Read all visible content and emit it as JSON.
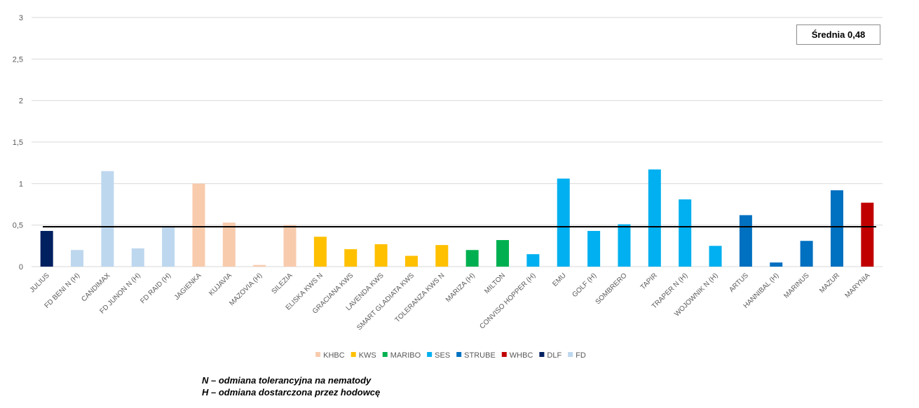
{
  "average_label": "Średnia 0,48",
  "notes": [
    "N – odmiana tolerancyjna na nematody",
    "H – odmiana dostarczona przez hodowcę"
  ],
  "colors": {
    "KHBC": "#f8cbad",
    "KWS": "#ffc000",
    "MARIBO": "#00b050",
    "SES": "#00b0f0",
    "STRUBE": "#0070c0",
    "WHBC": "#c00000",
    "DLF": "#002060",
    "FD": "#bdd7ee"
  },
  "chart_data": {
    "type": "bar",
    "ylim": [
      0,
      3
    ],
    "yticks": [
      "0",
      "0,5",
      "1",
      "1,5",
      "2",
      "2,5",
      "3"
    ],
    "ytick_values": [
      0,
      0.5,
      1,
      1.5,
      2,
      2.5,
      3
    ],
    "average": 0.48,
    "grid": true,
    "legend_position": "bottom",
    "legend": [
      "KHBC",
      "KWS",
      "MARIBO",
      "SES",
      "STRUBE",
      "WHBC",
      "DLF",
      "FD"
    ],
    "categories": [
      "JULIUS",
      "FD BENI N (H)",
      "CANDIMAX",
      "FD JUNON N (H)",
      "FD RAID (H)",
      "JAGIENKA",
      "KUJAVIA",
      "MAZOVIA (H)",
      "SILEZIA",
      "ELISKA KWS N",
      "GRACIANA KWS",
      "LAVENDA KWS",
      "SMART GLADIATA KWS",
      "TOLERANZA KWS N",
      "MARIZA (H)",
      "MILTON",
      "CONVISO HOPPER (H)",
      "EMU",
      "GOLF (H)",
      "SOMBRERO",
      "TAPIR",
      "TRAPER N (H)",
      "WOJOWNIK N (H)",
      "ARTUS",
      "HANNIBAL (H)",
      "MARINUS",
      "MAZUR",
      "MARYNIA"
    ],
    "values": [
      0.43,
      0.2,
      1.15,
      0.22,
      0.48,
      1.0,
      0.53,
      0.02,
      0.5,
      0.36,
      0.21,
      0.27,
      0.13,
      0.26,
      0.2,
      0.32,
      0.15,
      1.06,
      0.43,
      0.51,
      1.17,
      0.81,
      0.25,
      0.62,
      0.05,
      0.31,
      0.92,
      0.77
    ],
    "groups": [
      "DLF",
      "FD",
      "FD",
      "FD",
      "FD",
      "KHBC",
      "KHBC",
      "KHBC",
      "KHBC",
      "KWS",
      "KWS",
      "KWS",
      "KWS",
      "KWS",
      "MARIBO",
      "MARIBO",
      "SES",
      "SES",
      "SES",
      "SES",
      "SES",
      "SES",
      "SES",
      "STRUBE",
      "STRUBE",
      "STRUBE",
      "STRUBE",
      "WHBC"
    ]
  }
}
